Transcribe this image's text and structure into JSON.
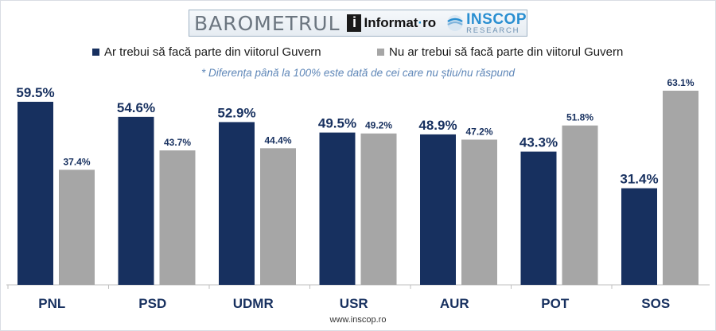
{
  "header": {
    "title": "BAROMETRUL",
    "logo_informat": "Informat",
    "logo_informat_suffix": "ro",
    "logo_inscop": "INSCOP",
    "logo_inscop_sub": "RESEARCH"
  },
  "note": "* Diferența până la 100% este dată de cei care nu știu/nu răspund",
  "footer": "www.inscop.ro",
  "colors": {
    "series_yes": "#17305f",
    "series_no": "#a6a6a6"
  },
  "chart_data": {
    "type": "bar",
    "categories": [
      "PNL",
      "PSD",
      "UDMR",
      "USR",
      "AUR",
      "POT",
      "SOS"
    ],
    "series": [
      {
        "name": "Ar trebui să facă parte din viitorul Guvern",
        "values": [
          59.5,
          54.6,
          52.9,
          49.5,
          48.9,
          43.3,
          31.4
        ],
        "labels": [
          "59.5%",
          "54.6%",
          "52.9%",
          "49.5%",
          "48.9%",
          "43.3%",
          "31.4%"
        ]
      },
      {
        "name": "Nu ar trebui să facă parte din viitorul Guvern",
        "values": [
          37.4,
          43.7,
          44.4,
          49.2,
          47.2,
          51.8,
          63.1
        ],
        "labels": [
          "37.4%",
          "43.7%",
          "44.4%",
          "49.2%",
          "47.2%",
          "51.8%",
          "63.1%"
        ]
      }
    ],
    "ylim": [
      0,
      63.1
    ],
    "legend_position": "top",
    "grid": false
  }
}
